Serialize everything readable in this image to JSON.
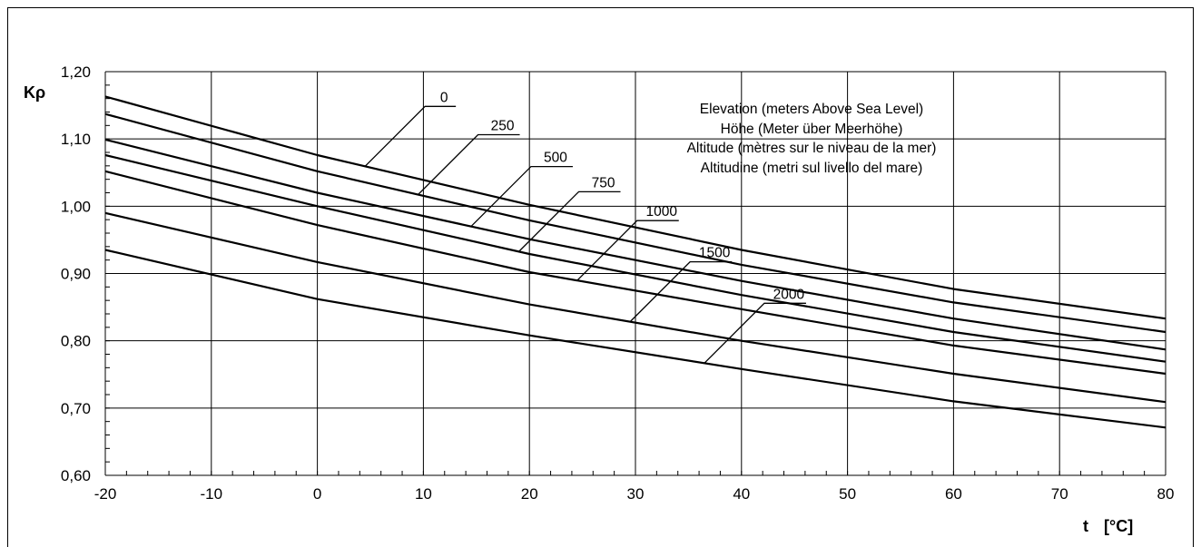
{
  "chart_data": {
    "type": "line",
    "title": "",
    "xlabel": "t",
    "xunit": "[°C]",
    "ylabel": "Kρ",
    "xlim": [
      -20,
      80
    ],
    "ylim": [
      0.6,
      1.2
    ],
    "xticks": [
      -20,
      -10,
      0,
      10,
      20,
      30,
      40,
      50,
      60,
      70,
      80
    ],
    "xtick_labels": [
      "-20",
      "-10",
      "0",
      "10",
      "20",
      "30",
      "40",
      "50",
      "60",
      "70",
      "80"
    ],
    "yticks": [
      0.6,
      0.7,
      0.8,
      0.9,
      1.0,
      1.1,
      1.2
    ],
    "ytick_labels": [
      "0,60",
      "0,70",
      "0,80",
      "0,90",
      "1,00",
      "1,10",
      "1,20"
    ],
    "grid": true,
    "legend_title_lines": [
      "Elevation (meters Above Sea Level)",
      "Höhe (Meter über Meerhöhe)",
      "Altitude (mètres sur le niveau de la mer)",
      "Altitudine (metri sul livello del mare)"
    ],
    "x": [
      -20,
      0,
      20,
      40,
      60,
      80
    ],
    "series": [
      {
        "name": "0",
        "values": [
          1.163,
          1.076,
          1.002,
          0.935,
          0.877,
          0.833
        ],
        "label_t": 4.5
      },
      {
        "name": "250",
        "values": [
          1.137,
          1.052,
          0.979,
          0.913,
          0.857,
          0.813
        ],
        "label_t": 9.5
      },
      {
        "name": "500",
        "values": [
          1.099,
          1.02,
          0.951,
          0.889,
          0.833,
          0.787
        ],
        "label_t": 14.5
      },
      {
        "name": "750",
        "values": [
          1.076,
          1.0,
          0.929,
          0.868,
          0.813,
          0.769
        ],
        "label_t": 19.0
      },
      {
        "name": "1000",
        "values": [
          1.052,
          0.972,
          0.902,
          0.847,
          0.793,
          0.751
        ],
        "label_t": 24.5
      },
      {
        "name": "1500",
        "values": [
          0.99,
          0.917,
          0.854,
          0.8,
          0.751,
          0.709
        ],
        "label_t": 29.5
      },
      {
        "name": "2000",
        "values": [
          0.935,
          0.862,
          0.808,
          0.758,
          0.71,
          0.671
        ],
        "label_t": 36.5
      }
    ]
  }
}
